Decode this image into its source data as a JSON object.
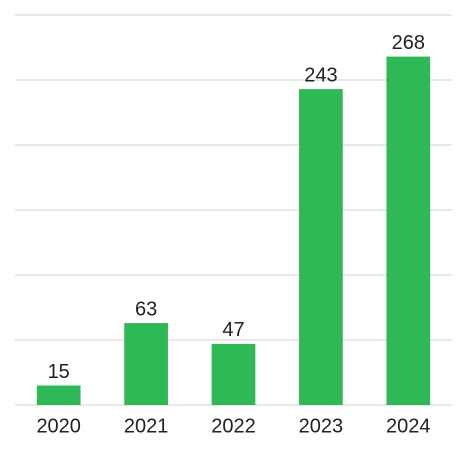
{
  "chart_data": {
    "type": "bar",
    "categories": [
      "2020",
      "2021",
      "2022",
      "2023",
      "2024"
    ],
    "values": [
      15,
      63,
      47,
      243,
      268
    ],
    "color": "#2eb856",
    "ylim": [
      0,
      300
    ],
    "yticks": [
      0,
      50,
      100,
      150,
      200,
      250,
      300
    ],
    "grid": true
  }
}
